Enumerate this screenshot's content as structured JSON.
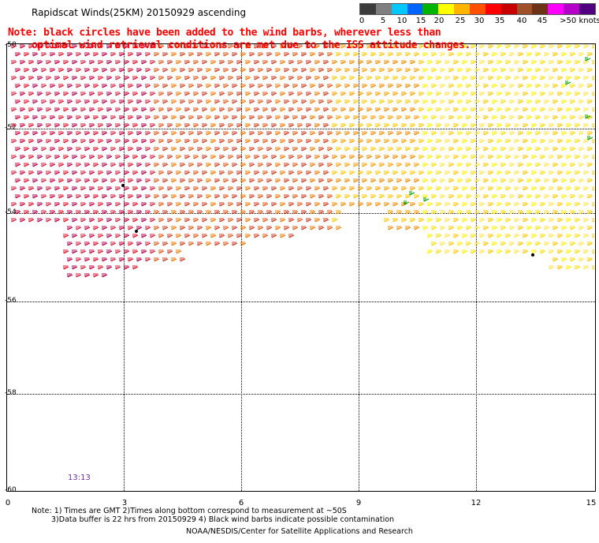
{
  "title": "Rapidscat Winds(25KM) 20150929 ascending",
  "note": {
    "line1": "Note: black circles have been added to the wind barbs, wherever less than",
    "line2": "optimal wind retrieval conditions are met due to the ISS attitude changes."
  },
  "legend": {
    "unit_label": ">50 knots",
    "labels": [
      "0",
      "5",
      "10",
      "15",
      "20",
      "25",
      "30",
      "35",
      "40",
      "45",
      ">50 knots"
    ],
    "colors": [
      "#3c3c3c",
      "#7f7f7f",
      "#00c8ff",
      "#0064ff",
      "#00b400",
      "#ffff00",
      "#ffb400",
      "#ff5000",
      "#ff0000",
      "#c80000",
      "#a05028",
      "#6e3214",
      "#ff00ff",
      "#b400c8",
      "#500080"
    ]
  },
  "axes": {
    "y_labels": [
      "-50",
      "-52",
      "-54",
      "-56",
      "-58",
      "-60"
    ],
    "x_labels": [
      "0",
      "3",
      "6",
      "9",
      "12",
      "15"
    ]
  },
  "time_label": "13:13",
  "footnotes": {
    "line1": "Note: 1) Times are GMT 2)Times along bottom correspond to measurement at ~50S",
    "line2": "3)Data buffer is 22 hrs from 20150929 4) Black wind barbs indicate possible contamination"
  },
  "credit": "NOAA/NESDIS/Center for Satellite Applications and Research",
  "map_data": {
    "lon_range": [
      0,
      15
    ],
    "lat_range": [
      -60,
      -50
    ],
    "swath_description": "wind barbs cover approx -50 to -55.5 latitude"
  }
}
